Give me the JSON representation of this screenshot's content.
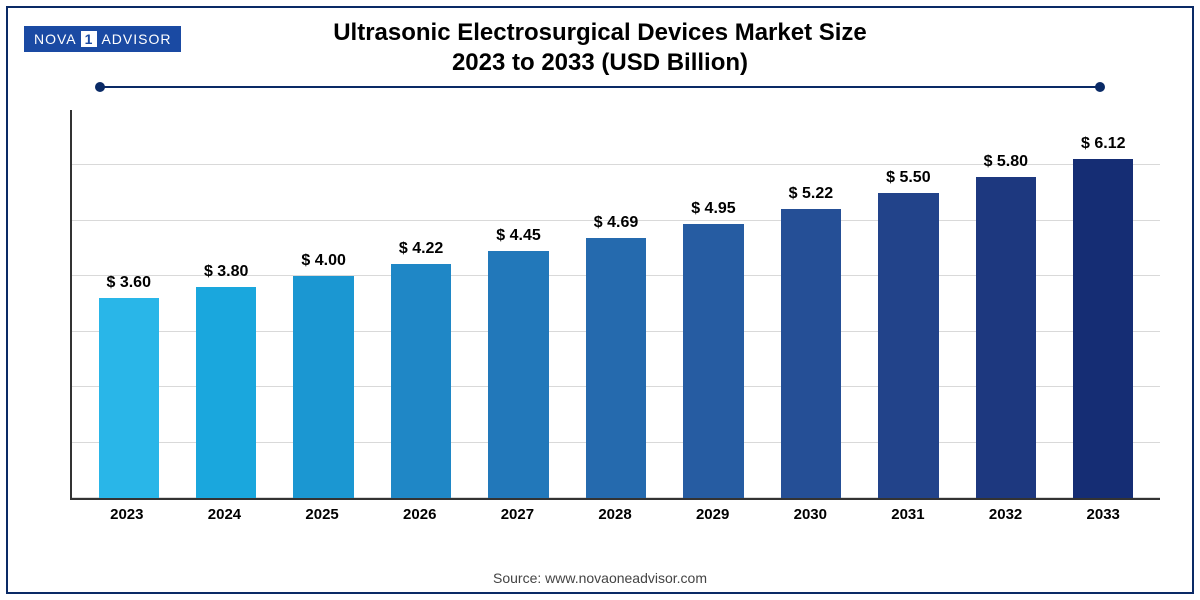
{
  "logo": {
    "left": "NOVA",
    "one": "1",
    "right": "ADVISOR"
  },
  "title_line1": "Ultrasonic Electrosurgical Devices Market Size",
  "title_line2": "2023 to 2033 (USD Billion)",
  "source": "Source: www.novaoneadvisor.com",
  "chart": {
    "type": "bar",
    "categories": [
      "2023",
      "2024",
      "2025",
      "2026",
      "2027",
      "2028",
      "2029",
      "2030",
      "2031",
      "2032",
      "2033"
    ],
    "values": [
      3.6,
      3.8,
      4.0,
      4.22,
      4.45,
      4.69,
      4.95,
      5.22,
      5.5,
      5.8,
      6.12
    ],
    "value_labels": [
      "$ 3.60",
      "$ 3.80",
      "$ 4.00",
      "$ 4.22",
      "$ 4.45",
      "$ 4.69",
      "$ 4.95",
      "$ 5.22",
      "$ 5.50",
      "$ 5.80",
      "$ 6.12"
    ],
    "bar_colors": [
      "#29b6e8",
      "#1aa7dd",
      "#1b97d2",
      "#1f87c6",
      "#2278ba",
      "#256aae",
      "#265ca2",
      "#254f96",
      "#22438a",
      "#1d387f",
      "#152d74"
    ],
    "ylim": [
      0,
      7.0
    ],
    "grid_positions_pct": [
      0,
      14.3,
      28.6,
      42.9,
      57.1,
      71.4,
      85.7
    ],
    "grid_color": "#d9d9d9",
    "axis_color": "#333333",
    "background_color": "#ffffff",
    "border_color": "#0a2a66",
    "title_fontsize": 24,
    "label_fontsize": 16,
    "xaxis_fontsize": 15,
    "bar_width_pct": 62
  }
}
